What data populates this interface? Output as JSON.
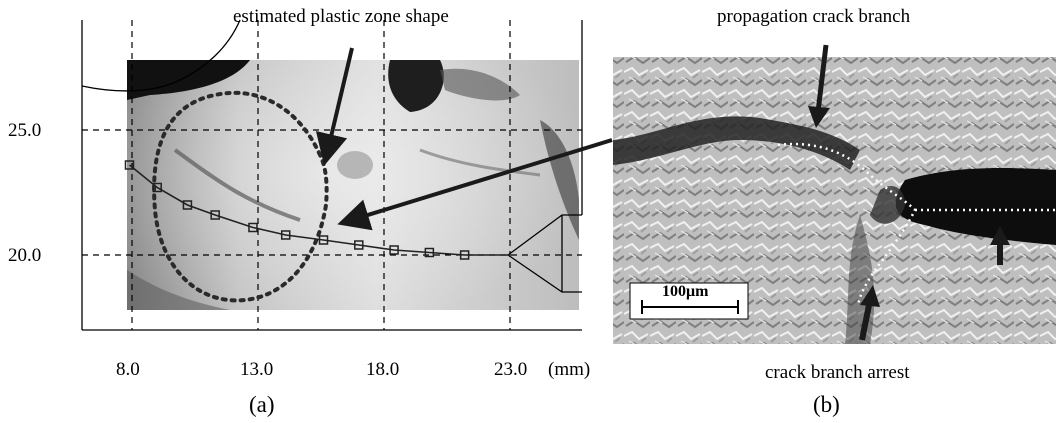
{
  "panel_a": {
    "annotation": "estimated plastic zone shape",
    "x_ticks": [
      "8.0",
      "13.0",
      "18.0",
      "23.0"
    ],
    "x_unit": "(mm)",
    "y_ticks": [
      "25.0",
      "20.0"
    ],
    "caption": "(a)",
    "crack_path": [
      {
        "x": 7.9,
        "y": 23.6
      },
      {
        "x": 9.0,
        "y": 22.7
      },
      {
        "x": 10.2,
        "y": 22.0
      },
      {
        "x": 11.3,
        "y": 21.6
      },
      {
        "x": 12.8,
        "y": 21.1
      },
      {
        "x": 14.1,
        "y": 20.8
      },
      {
        "x": 15.6,
        "y": 20.6
      },
      {
        "x": 17.0,
        "y": 20.4
      },
      {
        "x": 18.4,
        "y": 20.2
      },
      {
        "x": 19.8,
        "y": 20.1
      },
      {
        "x": 21.2,
        "y": 20.0
      }
    ]
  },
  "panel_b": {
    "annotation_top": "propagation crack branch",
    "annotation_bottom": "crack branch arrest",
    "scale_bar": "100μm",
    "caption": "(b)"
  }
}
